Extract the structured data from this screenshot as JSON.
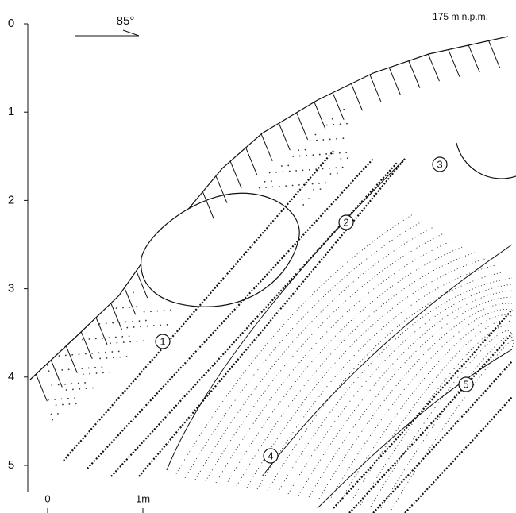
{
  "depth_axis": {
    "labels": [
      "0",
      "1",
      "2",
      "3",
      "4",
      "5"
    ]
  },
  "orientation": "85°",
  "elevation": "175 m n.p.m.",
  "layers": [
    "1",
    "2",
    "3",
    "4",
    "5"
  ],
  "scale_bar": {
    "labels": [
      "0",
      "1m"
    ]
  }
}
